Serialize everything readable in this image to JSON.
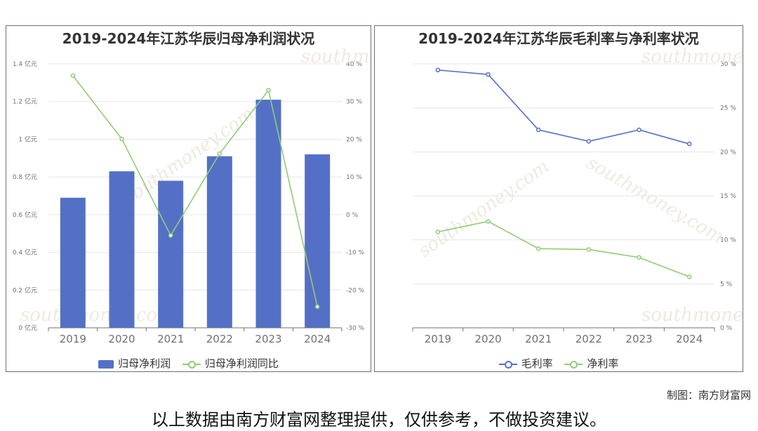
{
  "watermark": {
    "cn": "南方财富网",
    "en": "southmoney.com",
    "color": "#f0e6da"
  },
  "credit": "制图：南方财富网",
  "disclaimer": "以上数据由南方财富网整理提供，仅供参考，不做投资建议。",
  "colors": {
    "bar": "#5470c6",
    "green": "#91cc75",
    "blue": "#5470c6",
    "grid": "#e6e6e6"
  },
  "chart_data": [
    {
      "type": "bar",
      "title": "2019-2024年江苏华辰归母净利润状况",
      "categories": [
        "2019",
        "2020",
        "2021",
        "2022",
        "2023",
        "2024"
      ],
      "y_left": {
        "ylim": [
          0,
          1.4
        ],
        "ticks": [
          "0 亿元",
          "0.2 亿元",
          "0.4 亿元",
          "0.6 亿元",
          "0.8 亿元",
          "1 亿元",
          "1.2 亿元",
          "1.4 亿元"
        ]
      },
      "y_right": {
        "ylim": [
          -30,
          40
        ],
        "ticks": [
          "-30 %",
          "-20 %",
          "-10 %",
          "0 %",
          "10 %",
          "20 %",
          "30 %",
          "40 %"
        ]
      },
      "series": [
        {
          "name": "归母净利润",
          "type": "bar",
          "axis": "left",
          "values": [
            0.69,
            0.83,
            0.78,
            0.91,
            1.21,
            0.92
          ]
        },
        {
          "name": "归母净利润同比",
          "type": "line",
          "axis": "right",
          "values": [
            36.9,
            20.1,
            -5.5,
            16.2,
            33.0,
            -24.4
          ]
        }
      ],
      "legend": "bottom"
    },
    {
      "type": "line",
      "title": "2019-2024年江苏华辰毛利率与净利率状况",
      "categories": [
        "2019",
        "2020",
        "2021",
        "2022",
        "2023",
        "2024"
      ],
      "y_right": {
        "ylim": [
          0,
          30
        ],
        "ticks": [
          "0 %",
          "5 %",
          "10 %",
          "15 %",
          "20 %",
          "25 %",
          "30 %"
        ]
      },
      "series": [
        {
          "name": "毛利率",
          "values": [
            29.3,
            28.8,
            22.5,
            21.2,
            22.5,
            20.9
          ]
        },
        {
          "name": "净利率",
          "values": [
            10.9,
            12.1,
            9.0,
            8.9,
            8.0,
            5.8
          ]
        }
      ],
      "legend": "bottom"
    }
  ]
}
